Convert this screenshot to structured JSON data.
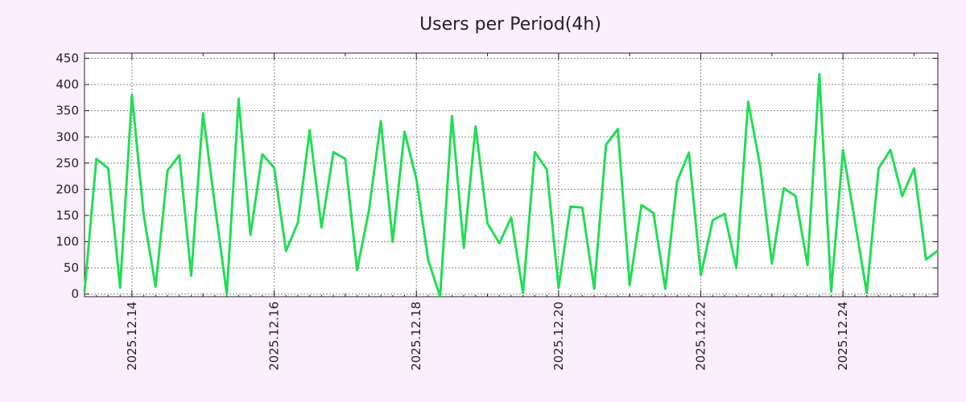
{
  "chart_data": {
    "type": "line",
    "title": "Users per Period(4h)",
    "xlabel": "",
    "ylabel": "",
    "x_start": "2025.12.13 08:00",
    "x_step_hours": 4,
    "x_tick_labels": [
      "2025.12.14",
      "2025.12.16",
      "2025.12.18",
      "2025.12.20",
      "2025.12.22",
      "2025.12.24"
    ],
    "y_ticks": [
      0,
      50,
      100,
      150,
      200,
      250,
      300,
      350,
      400,
      450
    ],
    "ylim": [
      -5,
      460
    ],
    "grid": true,
    "series": [
      {
        "color": "#22dd55",
        "values": [
          5,
          258,
          240,
          12,
          380,
          150,
          14,
          236,
          265,
          35,
          345,
          170,
          0,
          373,
          113,
          267,
          241,
          82,
          136,
          313,
          127,
          271,
          258,
          46,
          160,
          330,
          100,
          310,
          220,
          65,
          -5,
          340,
          88,
          320,
          135,
          97,
          146,
          2,
          271,
          238,
          12,
          167,
          165,
          10,
          285,
          315,
          17,
          170,
          155,
          10,
          215,
          270,
          36,
          141,
          153,
          50,
          367,
          245,
          58,
          202,
          187,
          55,
          420,
          5,
          275,
          140,
          2,
          240,
          275,
          187,
          240,
          66,
          83
        ]
      }
    ]
  }
}
